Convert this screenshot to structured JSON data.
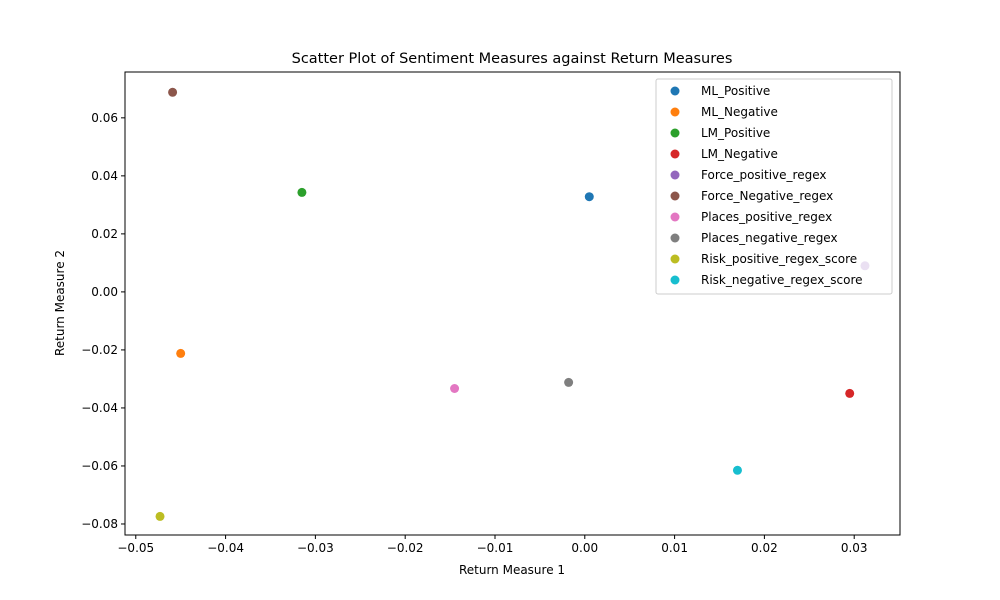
{
  "chart_data": {
    "type": "scatter",
    "title": "Scatter Plot of Sentiment Measures against Return Measures",
    "xlabel": "Return Measure 1",
    "ylabel": "Return Measure 2",
    "xlim": [
      -0.0512,
      0.0351
    ],
    "ylim": [
      -0.0838,
      0.0758
    ],
    "xticks": [
      -0.05,
      -0.04,
      -0.03,
      -0.02,
      -0.01,
      0.0,
      0.01,
      0.02,
      0.03
    ],
    "xtick_labels": [
      "−0.05",
      "−0.04",
      "−0.03",
      "−0.02",
      "−0.01",
      "0.00",
      "0.01",
      "0.02",
      "0.03"
    ],
    "yticks": [
      -0.08,
      -0.06,
      -0.04,
      -0.02,
      0.0,
      0.02,
      0.04,
      0.06
    ],
    "ytick_labels": [
      "−0.08",
      "−0.06",
      "−0.04",
      "−0.02",
      "0.00",
      "0.02",
      "0.04",
      "0.06"
    ],
    "grid": false,
    "legend_position": "top-right",
    "series": [
      {
        "name": "ML_Positive",
        "color": "#1f77b4",
        "x": 0.0005,
        "y": 0.0328
      },
      {
        "name": "ML_Negative",
        "color": "#ff7f0e",
        "x": -0.045,
        "y": -0.0212
      },
      {
        "name": "LM_Positive",
        "color": "#2ca02c",
        "x": -0.0315,
        "y": 0.0343
      },
      {
        "name": "LM_Negative",
        "color": "#d62728",
        "x": 0.0295,
        "y": -0.035
      },
      {
        "name": "Force_positive_regex",
        "color": "#9467bd",
        "x": 0.0312,
        "y": 0.009
      },
      {
        "name": "Force_Negative_regex",
        "color": "#8c564b",
        "x": -0.0459,
        "y": 0.0688
      },
      {
        "name": "Places_positive_regex",
        "color": "#e377c2",
        "x": -0.0145,
        "y": -0.0333
      },
      {
        "name": "Places_negative_regex",
        "color": "#7f7f7f",
        "x": -0.0018,
        "y": -0.0312
      },
      {
        "name": "Risk_positive_regex_score",
        "color": "#bcbd22",
        "x": -0.0473,
        "y": -0.0774
      },
      {
        "name": "Risk_negative_regex_score",
        "color": "#17becf",
        "x": 0.017,
        "y": -0.0615
      }
    ]
  }
}
